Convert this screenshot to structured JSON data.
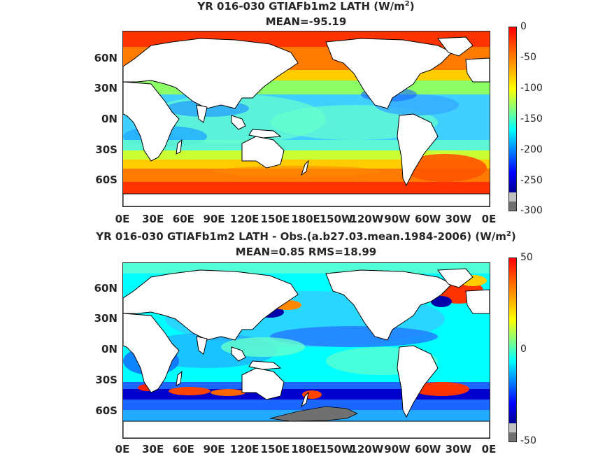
{
  "panels": [
    {
      "title_main": "YR 016-030 GTIAFb1m2  LATH (W/m",
      "title_sup": "2",
      "title_end": ")",
      "subtitle": "MEAN=-95.19",
      "colorbar": {
        "min": -300,
        "max": 0,
        "ticks": [
          "0",
          "-50",
          "-100",
          "-150",
          "-200",
          "-250",
          "-300"
        ],
        "colormap": "jet",
        "out_of_range_colors": [
          "#c0c0c0",
          "#707070"
        ]
      }
    },
    {
      "title_main": "YR 016-030 GTIAFb1m2 LATH - Obs.(a.b27.03.mean.1984-2006) (W/m",
      "title_sup": "2",
      "title_end": ")",
      "subtitle": "MEAN=0.85 RMS=18.99",
      "colorbar": {
        "min": -50,
        "max": 50,
        "ticks": [
          "50",
          "0",
          "-50"
        ],
        "colormap": "jet",
        "out_of_range_colors": [
          "#c0c0c0",
          "#707070"
        ]
      }
    }
  ],
  "axes": {
    "y_ticks": [
      "60N",
      "30N",
      "0N",
      "30S",
      "60S"
    ],
    "x_ticks": [
      "0E",
      "30E",
      "60E",
      "90E",
      "120E",
      "150E",
      "180E",
      "150W",
      "120W",
      "90W",
      "60W",
      "30W",
      "0E"
    ]
  },
  "colors": {
    "land": "#ffffff",
    "coast": "#000000",
    "masked": "#707070"
  }
}
